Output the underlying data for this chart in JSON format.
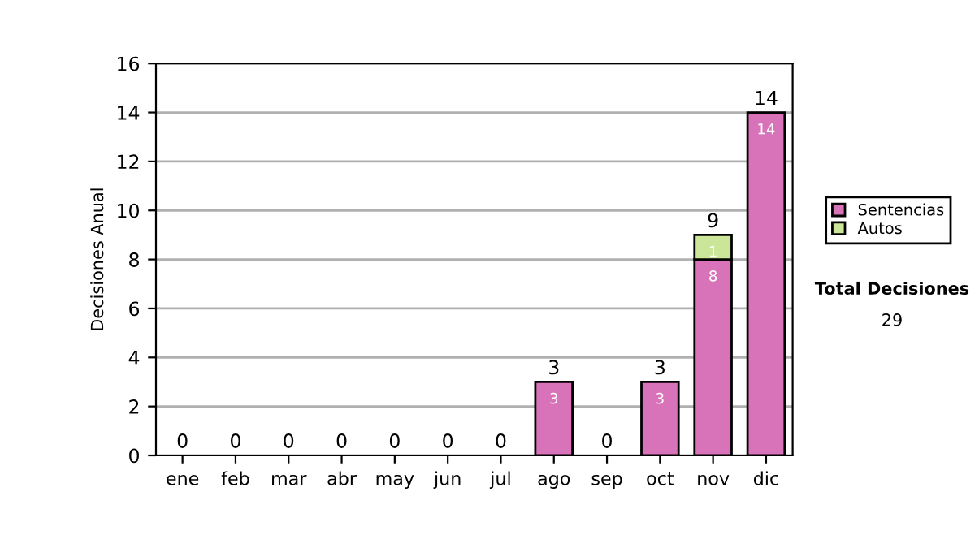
{
  "chart_data": {
    "type": "bar",
    "ylabel": "Decisiones Anual",
    "categories": [
      "ene",
      "feb",
      "mar",
      "abr",
      "may",
      "jun",
      "jul",
      "ago",
      "sep",
      "oct",
      "nov",
      "dic"
    ],
    "series": [
      {
        "name": "Sentencias",
        "color": "#d873b9",
        "values": [
          0,
          0,
          0,
          0,
          0,
          0,
          0,
          3,
          0,
          3,
          8,
          14
        ],
        "value_labels": [
          null,
          null,
          null,
          null,
          null,
          null,
          null,
          "3",
          null,
          "3",
          "8",
          "14"
        ]
      },
      {
        "name": "Autos",
        "color": "#cce699",
        "values": [
          0,
          0,
          0,
          0,
          0,
          0,
          0,
          0,
          0,
          0,
          1,
          0
        ],
        "value_labels": [
          null,
          null,
          null,
          null,
          null,
          null,
          null,
          null,
          null,
          null,
          "1",
          null
        ]
      }
    ],
    "stacked": true,
    "totals": [
      "0",
      "0",
      "0",
      "0",
      "0",
      "0",
      "0",
      "3",
      "0",
      "3",
      "9",
      "14"
    ],
    "ylim": [
      0,
      16
    ],
    "yticks": [
      0,
      2,
      4,
      6,
      8,
      10,
      12,
      14,
      16
    ],
    "grid": "y",
    "legend": "right",
    "annotations": [
      "Total Decisiones",
      "29"
    ]
  }
}
